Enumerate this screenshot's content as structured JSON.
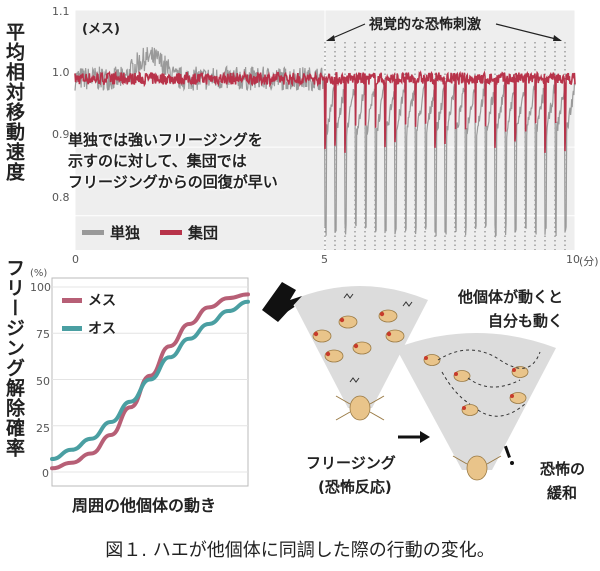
{
  "top_chart": {
    "ylabel": "平均相対移動速度",
    "sex_label": "(メス)",
    "stimulus_label": "視覚的な恐怖刺激",
    "annotation_lines": [
      "単独では強いフリージングを",
      "示すのに対して、集団では",
      "フリージングからの回復が早い"
    ],
    "x_ticks": [
      "0",
      "5",
      "10"
    ],
    "x_unit": "(分)",
    "y_ticks": [
      "1.1",
      "1.0",
      "0.9",
      "0.8"
    ],
    "legend": [
      {
        "label": "単独",
        "color": "#999999"
      },
      {
        "label": "集団",
        "color": "#b8334a"
      }
    ]
  },
  "bottom_chart": {
    "ylabel": "フリージング解除確率",
    "percent_label": "(%)",
    "y_ticks": [
      "100",
      "75",
      "50",
      "25",
      "0"
    ],
    "xlabel": "周囲の他個体の動き",
    "legend": [
      {
        "label": "メス",
        "color": "#b75f76"
      },
      {
        "label": "オス",
        "color": "#4a9fa2"
      }
    ]
  },
  "diagram": {
    "freezing_label_1": "フリージング",
    "freezing_label_2": "(恐怖反応)",
    "move_label_1": "他個体が動くと",
    "move_label_2": "自分も動く",
    "relief_label_1": "恐怖の",
    "relief_label_2": "緩和"
  },
  "caption": "図１. ハエが他個体に同調した際の行動の変化。",
  "chart_data": [
    {
      "type": "line",
      "xlabel": "(分)",
      "ylabel": "平均相対移動速度",
      "xlim": [
        0,
        10
      ],
      "ylim": [
        0.75,
        1.1
      ],
      "stimulus_times": [
        5.0,
        5.2,
        5.4,
        5.6,
        5.8,
        6.0,
        6.2,
        6.4,
        6.6,
        6.8,
        7.0,
        7.2,
        7.4,
        7.6,
        7.8,
        8.0,
        8.2,
        8.4,
        8.6,
        8.8,
        9.0,
        9.2,
        9.4,
        9.6,
        9.8
      ],
      "series": [
        {
          "name": "単独",
          "baseline": 1.0,
          "stimulus_dip_to": 0.78,
          "recovery_level": 0.92
        },
        {
          "name": "集団",
          "baseline": 1.0,
          "stimulus_dip_to": 0.9,
          "recovery_level": 1.0
        }
      ]
    },
    {
      "type": "line",
      "xlabel": "周囲の他個体の動き",
      "ylabel": "フリージング解除確率",
      "ylim": [
        0,
        100
      ],
      "x": [
        0,
        0.1,
        0.2,
        0.3,
        0.4,
        0.5,
        0.6,
        0.7,
        0.8,
        0.9,
        1.0
      ],
      "series": [
        {
          "name": "メス",
          "values": [
            2,
            5,
            10,
            20,
            35,
            52,
            68,
            80,
            89,
            94,
            96
          ]
        },
        {
          "name": "オス",
          "values": [
            7,
            12,
            18,
            27,
            38,
            50,
            62,
            72,
            80,
            87,
            92
          ]
        }
      ]
    }
  ]
}
